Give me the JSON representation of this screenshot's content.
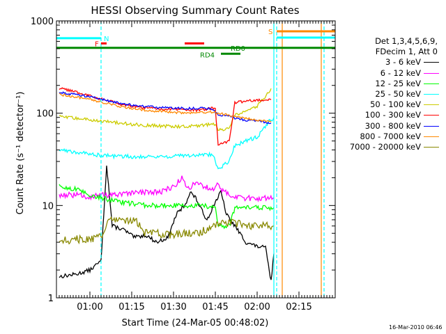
{
  "chart_data": {
    "type": "line",
    "title": "HESSI Observing Summary Count Rates",
    "xlabel": "Start Time (24-Mar-05 00:48:02)",
    "ylabel": "Count Rate (s⁻¹ detector⁻¹)",
    "x_start": "00:48",
    "x_end": "02:28",
    "x_ticks": [
      "01:00",
      "01:15",
      "01:30",
      "01:45",
      "02:00",
      "02:15"
    ],
    "y_scale": "log",
    "ylim": [
      1,
      1000
    ],
    "y_ticks": [
      "1",
      "10",
      "100",
      "1000"
    ],
    "legend_header": [
      "Det 1,3,4,5,6,9,",
      "FDecim 1, Att 0"
    ],
    "series": [
      {
        "name": "3 - 6 keV",
        "color": "#000000",
        "points": [
          [
            "00:49",
            1.7
          ],
          [
            "00:55",
            1.8
          ],
          [
            "01:00",
            2.0
          ],
          [
            "01:04",
            2.5
          ],
          [
            "01:06",
            28
          ],
          [
            "01:08",
            6
          ],
          [
            "01:12",
            5.5
          ],
          [
            "01:16",
            4.5
          ],
          [
            "01:20",
            4.8
          ],
          [
            "01:24",
            4
          ],
          [
            "01:28",
            4.5
          ],
          [
            "01:31",
            8
          ],
          [
            "01:34",
            10
          ],
          [
            "01:36",
            14
          ],
          [
            "01:38",
            12
          ],
          [
            "01:40",
            9
          ],
          [
            "01:42",
            7
          ],
          [
            "01:45",
            11
          ],
          [
            "01:47",
            14
          ],
          [
            "01:49",
            8
          ],
          [
            "01:52",
            6
          ],
          [
            "01:56",
            4
          ],
          [
            "02:00",
            3.6
          ],
          [
            "02:03",
            3.5
          ],
          [
            "02:05",
            1.5
          ],
          [
            "02:06",
            3
          ]
        ]
      },
      {
        "name": "6 - 12 keV",
        "color": "#ff00ff",
        "points": [
          [
            "00:49",
            13
          ],
          [
            "00:55",
            13
          ],
          [
            "01:00",
            12.5
          ],
          [
            "01:05",
            13
          ],
          [
            "01:10",
            13
          ],
          [
            "01:15",
            13.5
          ],
          [
            "01:20",
            14
          ],
          [
            "01:25",
            14
          ],
          [
            "01:30",
            16
          ],
          [
            "01:33",
            20
          ],
          [
            "01:35",
            15
          ],
          [
            "01:38",
            18
          ],
          [
            "01:41",
            16
          ],
          [
            "01:44",
            15
          ],
          [
            "01:46",
            17
          ],
          [
            "01:48",
            14
          ],
          [
            "01:52",
            12.5
          ],
          [
            "01:56",
            12
          ],
          [
            "02:00",
            12
          ],
          [
            "02:06",
            12
          ]
        ]
      },
      {
        "name": "12 - 25 keV",
        "color": "#00ff00",
        "points": [
          [
            "00:49",
            16
          ],
          [
            "00:55",
            15
          ],
          [
            "01:00",
            13
          ],
          [
            "01:05",
            12
          ],
          [
            "01:10",
            11
          ],
          [
            "01:15",
            10.5
          ],
          [
            "01:20",
            10
          ],
          [
            "01:25",
            10
          ],
          [
            "01:30",
            10
          ],
          [
            "01:35",
            10
          ],
          [
            "01:40",
            10
          ],
          [
            "01:45",
            9.5
          ],
          [
            "01:46",
            6
          ],
          [
            "01:50",
            6
          ],
          [
            "01:52",
            9.5
          ],
          [
            "01:56",
            9.5
          ],
          [
            "02:00",
            9.5
          ],
          [
            "02:06",
            9.5
          ]
        ]
      },
      {
        "name": "25 - 50 keV",
        "color": "#00ffff",
        "points": [
          [
            "00:49",
            40
          ],
          [
            "00:55",
            38
          ],
          [
            "01:00",
            36
          ],
          [
            "01:05",
            35
          ],
          [
            "01:10",
            34
          ],
          [
            "01:15",
            34
          ],
          [
            "01:20",
            34
          ],
          [
            "01:25",
            34
          ],
          [
            "01:30",
            34
          ],
          [
            "01:35",
            35
          ],
          [
            "01:40",
            35
          ],
          [
            "01:44",
            36
          ],
          [
            "01:46",
            25
          ],
          [
            "01:50",
            30
          ],
          [
            "01:52",
            45
          ],
          [
            "01:56",
            50
          ],
          [
            "02:00",
            55
          ],
          [
            "02:04",
            80
          ],
          [
            "02:06",
            90
          ]
        ]
      },
      {
        "name": "50 - 100 keV",
        "color": "#cccc00",
        "points": [
          [
            "00:49",
            92
          ],
          [
            "00:55",
            88
          ],
          [
            "01:00",
            85
          ],
          [
            "01:05",
            82
          ],
          [
            "01:10",
            79
          ],
          [
            "01:15",
            76
          ],
          [
            "01:20",
            74
          ],
          [
            "01:25",
            73
          ],
          [
            "01:30",
            72
          ],
          [
            "01:35",
            72
          ],
          [
            "01:40",
            74
          ],
          [
            "01:45",
            76
          ],
          [
            "01:46",
            65
          ],
          [
            "01:50",
            68
          ],
          [
            "01:52",
            95
          ],
          [
            "01:56",
            105
          ],
          [
            "02:00",
            120
          ],
          [
            "02:03",
            150
          ],
          [
            "02:05",
            185
          ]
        ]
      },
      {
        "name": "100 - 300 keV",
        "color": "#ff0000",
        "points": [
          [
            "00:49",
            185
          ],
          [
            "00:55",
            170
          ],
          [
            "01:00",
            155
          ],
          [
            "01:05",
            140
          ],
          [
            "01:10",
            128
          ],
          [
            "01:15",
            120
          ],
          [
            "01:20",
            115
          ],
          [
            "01:25",
            112
          ],
          [
            "01:30",
            110
          ],
          [
            "01:35",
            108
          ],
          [
            "01:40",
            108
          ],
          [
            "01:45",
            115
          ],
          [
            "01:46",
            45
          ],
          [
            "01:50",
            50
          ],
          [
            "01:52",
            130
          ],
          [
            "01:56",
            135
          ],
          [
            "02:00",
            138
          ],
          [
            "02:05",
            140
          ]
        ]
      },
      {
        "name": "300 - 800 keV",
        "color": "#0000ff",
        "points": [
          [
            "00:49",
            168
          ],
          [
            "00:55",
            160
          ],
          [
            "01:00",
            150
          ],
          [
            "01:05",
            140
          ],
          [
            "01:10",
            130
          ],
          [
            "01:15",
            123
          ],
          [
            "01:20",
            118
          ],
          [
            "01:25",
            115
          ],
          [
            "01:30",
            114
          ],
          [
            "01:35",
            113
          ],
          [
            "01:40",
            113
          ],
          [
            "01:44",
            112
          ],
          [
            "01:46",
            95
          ],
          [
            "01:50",
            95
          ],
          [
            "01:52",
            88
          ],
          [
            "01:56",
            84
          ],
          [
            "02:00",
            82
          ],
          [
            "02:05",
            78
          ]
        ]
      },
      {
        "name": "800 - 7000 keV",
        "color": "#ff8800",
        "points": [
          [
            "00:49",
            160
          ],
          [
            "00:55",
            150
          ],
          [
            "01:00",
            140
          ],
          [
            "01:05",
            130
          ],
          [
            "01:10",
            120
          ],
          [
            "01:15",
            113
          ],
          [
            "01:20",
            108
          ],
          [
            "01:25",
            105
          ],
          [
            "01:30",
            102
          ],
          [
            "01:35",
            101
          ],
          [
            "01:40",
            101
          ],
          [
            "01:44",
            102
          ],
          [
            "01:46",
            100
          ],
          [
            "01:50",
            96
          ],
          [
            "01:52",
            92
          ],
          [
            "01:56",
            88
          ],
          [
            "02:00",
            84
          ],
          [
            "02:05",
            80
          ]
        ]
      },
      {
        "name": "7000 - 20000 keV",
        "color": "#888800",
        "points": [
          [
            "00:49",
            4.2
          ],
          [
            "00:55",
            4.3
          ],
          [
            "01:00",
            4.4
          ],
          [
            "01:04",
            4.5
          ],
          [
            "01:06",
            6.5
          ],
          [
            "01:08",
            7
          ],
          [
            "01:12",
            6.8
          ],
          [
            "01:16",
            7
          ],
          [
            "01:20",
            5
          ],
          [
            "01:24",
            5
          ],
          [
            "01:28",
            4.8
          ],
          [
            "01:32",
            5
          ],
          [
            "01:36",
            5
          ],
          [
            "01:40",
            5.2
          ],
          [
            "01:44",
            6
          ],
          [
            "01:48",
            6.5
          ],
          [
            "01:52",
            6.5
          ],
          [
            "01:56",
            6.2
          ],
          [
            "02:00",
            6
          ],
          [
            "02:06",
            6
          ]
        ]
      }
    ],
    "flags": [
      {
        "label": "N",
        "color": "#00ffff",
        "start": "00:48",
        "end": "01:04",
        "y": 650
      },
      {
        "label": "F",
        "color": "#ff0000",
        "start": "01:04",
        "end": "01:06",
        "y": 570
      },
      {
        "label": "",
        "color": "#ff0000",
        "start": "01:34",
        "end": "01:41",
        "y": 570
      },
      {
        "label": "RD0",
        "color": "#008800",
        "start": "00:48",
        "end": "02:28",
        "y": 510
      },
      {
        "label": "RD4",
        "color": "#008800",
        "start": "01:47",
        "end": "01:54",
        "y": 440
      },
      {
        "label": "S",
        "color": "#ff8800",
        "start": "02:07",
        "end": "02:28",
        "y": 770
      },
      {
        "label": "",
        "color": "#00ffff",
        "start": "02:07",
        "end": "02:28",
        "y": 660
      }
    ],
    "vlines": [
      {
        "t": "01:04",
        "color": "#00ffff",
        "dashed": true
      },
      {
        "t": "02:06",
        "color": "#00ffff",
        "dashed": false
      },
      {
        "t": "02:07",
        "color": "#00ffff",
        "dashed": true
      },
      {
        "t": "02:09",
        "color": "#ff8800",
        "dashed": false
      },
      {
        "t": "02:23",
        "color": "#ff8800",
        "dashed": false
      },
      {
        "t": "02:24",
        "color": "#00ffff",
        "dashed": true
      }
    ]
  },
  "timestamp": "16-Mar-2010 06:46"
}
